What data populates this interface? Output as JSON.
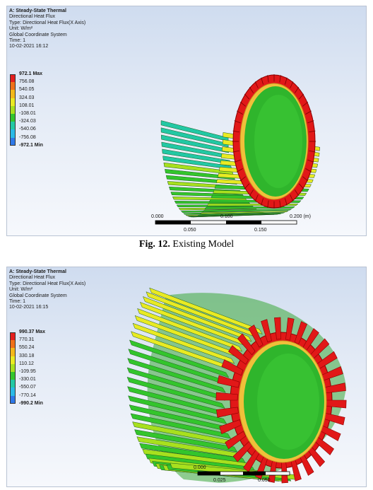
{
  "figure1": {
    "info": [
      "A: Steady-State Thermal",
      "Directional Heat Flux",
      "Type: Directional Heat Flux(X Axis)",
      "Unit: W/m²",
      "Global Coordinate System",
      "Time: 1",
      "10-02-2021 16:12"
    ],
    "legend": {
      "labels": [
        "972.1 Max",
        "756.08",
        "540.05",
        "324.03",
        "108.01",
        "-108.01",
        "-324.03",
        "-540.06",
        "-756.08",
        "-972.1 Min"
      ],
      "colors": [
        "#e41e1e",
        "#f07018",
        "#f3b81a",
        "#e9ea23",
        "#a8e01e",
        "#33c52c",
        "#22c8a4",
        "#29b9e6",
        "#2d78e8",
        "#1f28d6"
      ]
    },
    "scale": {
      "ticks_top": [
        "0.000",
        "0.100",
        "0.200 (m)"
      ],
      "ticks_bottom": [
        "0.050",
        "0.150"
      ]
    },
    "caption": {
      "label": "Fig. 12.",
      "text": " Existing Model"
    }
  },
  "figure2": {
    "info": [
      "A: Steady-State Thermal",
      "Directional Heat Flux",
      "Type: Directional Heat Flux(X Axis)",
      "Unit: W/m²",
      "Global Coordinate System",
      "Time: 1",
      "10-02-2021 16:15"
    ],
    "legend": {
      "labels": [
        "990.37 Max",
        "770.31",
        "550.24",
        "330.18",
        "110.12",
        "-109.95",
        "-330.01",
        "-550.07",
        "-770.14",
        "-990.2 Min"
      ],
      "colors": [
        "#e41e1e",
        "#f07018",
        "#f3b81a",
        "#e9ea23",
        "#a8e01e",
        "#33c52c",
        "#22c8a4",
        "#29b9e6",
        "#2d78e8",
        "#1f28d6"
      ]
    },
    "scale": {
      "ticks_top": [
        "0.000"
      ],
      "ticks_bottom": [
        "0.025",
        "0.050"
      ]
    }
  }
}
